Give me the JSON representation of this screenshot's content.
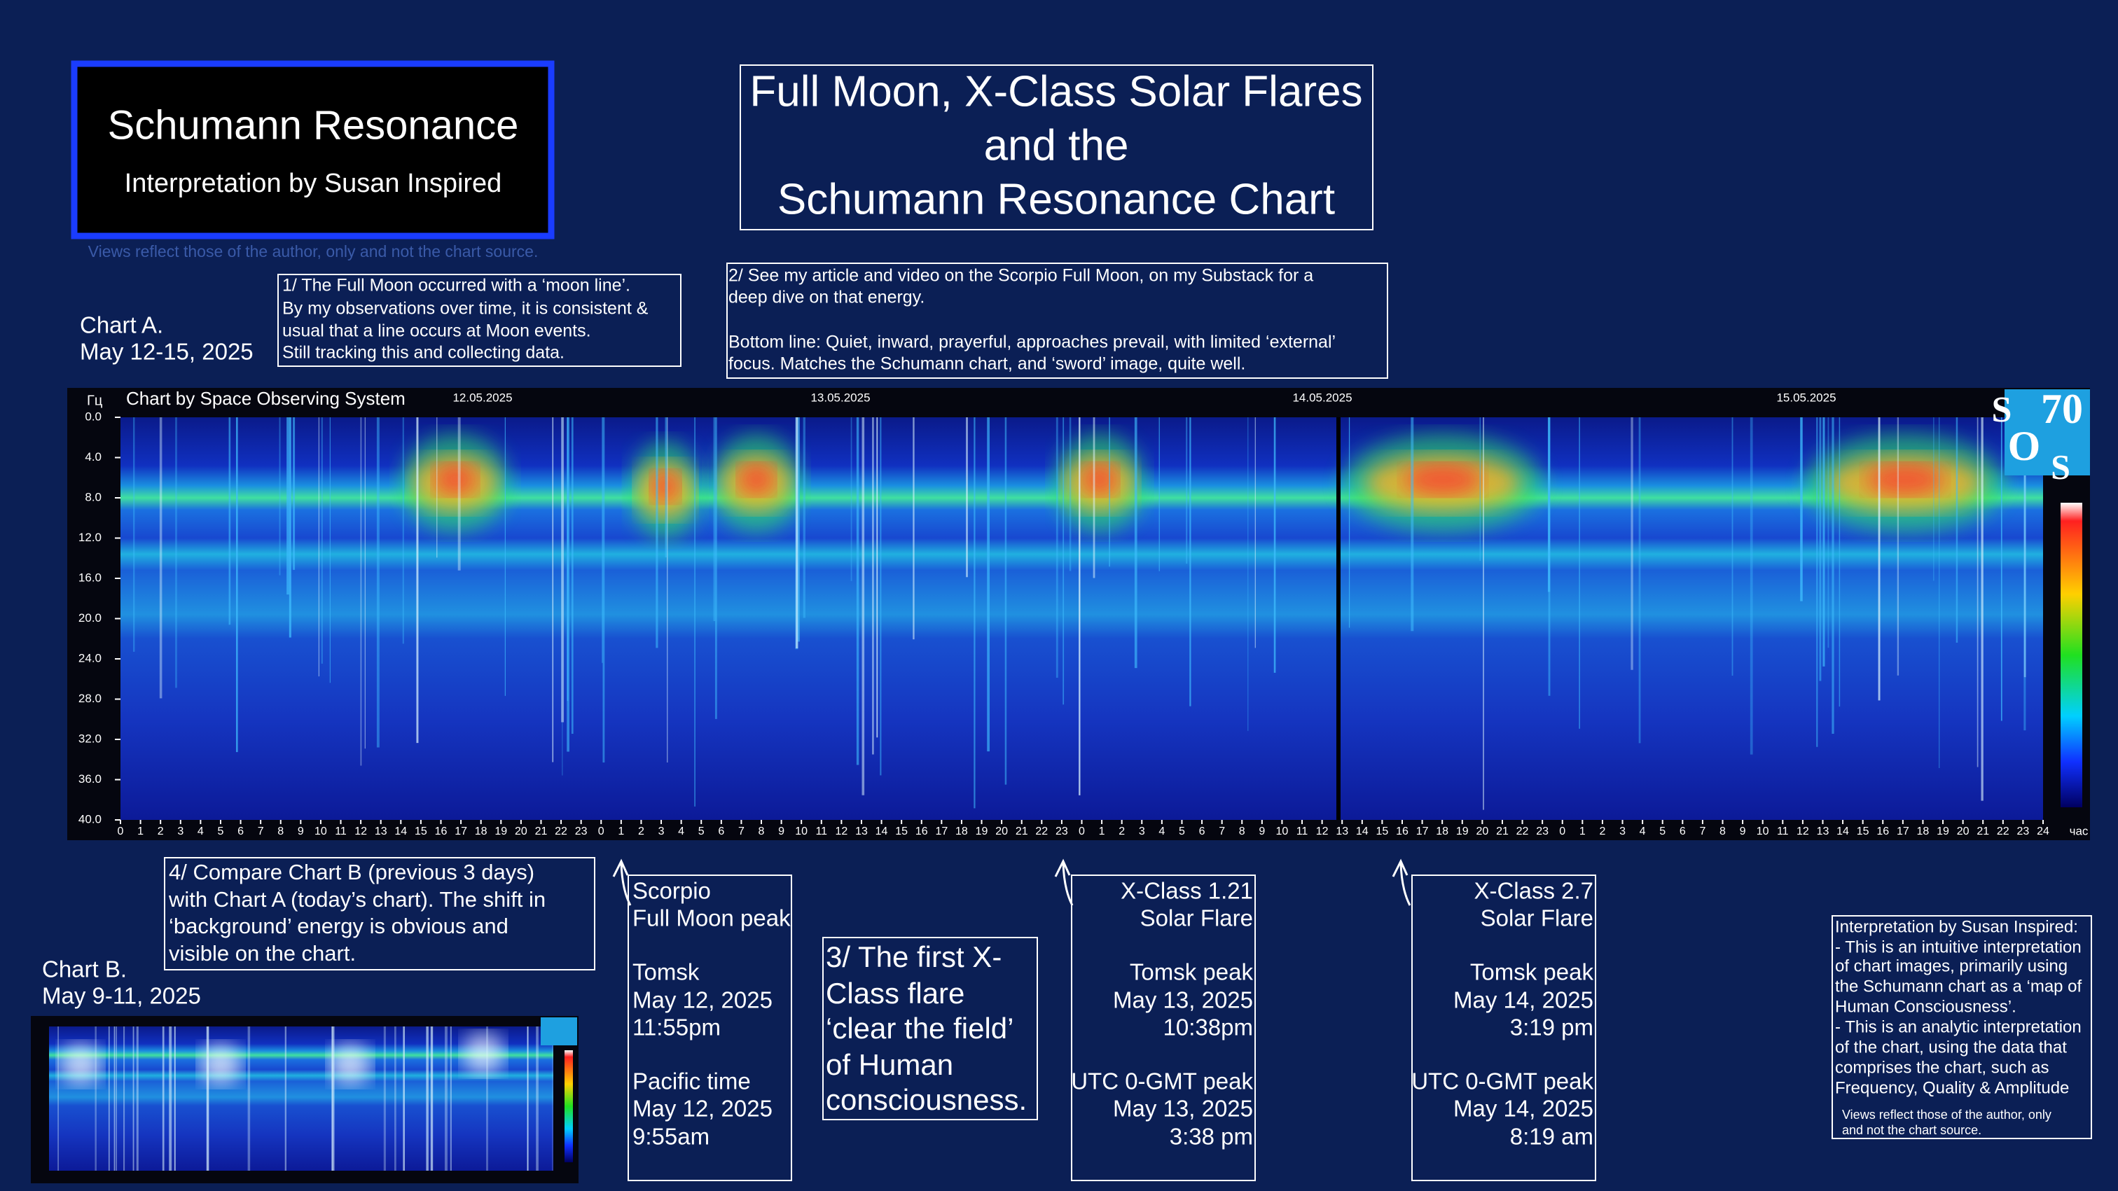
{
  "title_box": {
    "title": "Schumann Resonance",
    "subtitle": "Interpretation by Susan Inspired",
    "disclaimer": "Views reflect those of the author, only and not the chart source."
  },
  "main_title": [
    "Full Moon, X-Class Solar Flares",
    "and the",
    "Schumann Resonance Chart"
  ],
  "note1": [
    "1/ The Full Moon occurred with a ‘moon line’.",
    "By my observations over time, it is consistent &",
    "usual that a line occurs at Moon events.",
    "Still tracking this and collecting data."
  ],
  "note2": [
    "2/ See my article and video on the Scorpio Full Moon, on my Substack for a",
    "deep dive on that energy.",
    "Bottom line: Quiet, inward, prayerful, approaches prevail, with limited ‘external’",
    "focus. Matches the Schumann chart, and ‘sword’ image, quite well."
  ],
  "chart_a": {
    "label": [
      "Chart A.",
      "May 12-15, 2025"
    ],
    "source": "Chart by Space Observing System",
    "y_unit": "Гц",
    "x_unit": "час",
    "y_ticks": [
      "0.0",
      "4.0",
      "8.0",
      "12.0",
      "16.0",
      "20.0",
      "24.0",
      "28.0",
      "32.0",
      "36.0",
      "40.0"
    ],
    "dates": [
      "12.05.2025",
      "13.05.2025",
      "14.05.2025",
      "15.05.2025"
    ],
    "hours": [
      "0",
      "1",
      "2",
      "3",
      "4",
      "5",
      "6",
      "7",
      "8",
      "9",
      "10",
      "11",
      "12",
      "13",
      "14",
      "15",
      "16",
      "17",
      "18",
      "19",
      "20",
      "21",
      "22",
      "23",
      "0",
      "1",
      "2",
      "3",
      "4",
      "5",
      "6",
      "7",
      "8",
      "9",
      "10",
      "11",
      "12",
      "13",
      "14",
      "15",
      "16",
      "17",
      "18",
      "19",
      "20",
      "21",
      "22",
      "23",
      "0",
      "1",
      "2",
      "3",
      "4",
      "5",
      "6",
      "7",
      "8",
      "9",
      "10",
      "11",
      "12",
      "13",
      "14",
      "15",
      "16",
      "17",
      "18",
      "19",
      "20",
      "21",
      "22",
      "23",
      "0",
      "1",
      "2",
      "3",
      "4",
      "5",
      "6",
      "7",
      "8",
      "9",
      "10",
      "11",
      "12",
      "13",
      "14",
      "15",
      "16",
      "17",
      "18",
      "19",
      "20",
      "21",
      "22",
      "23",
      "24"
    ],
    "logo": [
      "S",
      "70",
      "O",
      "S"
    ]
  },
  "note4": [
    "4/ Compare Chart B (previous 3 days)",
    "with Chart A (today’s chart). The shift in",
    "‘background’ energy is obvious and",
    "visible on the chart."
  ],
  "chart_b": {
    "label": [
      "Chart B.",
      "May 9-11, 2025"
    ]
  },
  "scorpio": [
    "Scorpio",
    "Full Moon peak",
    "Tomsk",
    "May 12, 2025",
    "11:55pm",
    "Pacific time",
    "May 12, 2025",
    "9:55am"
  ],
  "note3": [
    "3/ The first X-",
    "Class flare",
    "‘clear the field’",
    "of Human",
    "consciousness."
  ],
  "flare1": [
    "X-Class 1.21",
    "Solar Flare",
    "Tomsk peak",
    "May 13, 2025",
    "10:38pm",
    "UTC 0-GMT peak",
    "May 13, 2025",
    "3:38 pm"
  ],
  "flare2": [
    "X-Class 2.7",
    "Solar Flare",
    "Tomsk peak",
    "May 14, 2025",
    "3:19 pm",
    "UTC 0-GMT peak",
    "May 14, 2025",
    "8:19 am"
  ],
  "interpretation": [
    "Interpretation by Susan Inspired:",
    "- This is an intuitive interpretation",
    "of chart images, primarily using",
    "the Schumann chart as a ‘map of",
    "Human Consciousness’.",
    "- This is an analytic interpretation",
    "of the chart, using the data that",
    "comprises the chart, such as",
    "Frequency, Quality & Amplitude"
  ],
  "interpretation_note": [
    "Views reflect those of the author, only",
    "and not the chart source."
  ]
}
